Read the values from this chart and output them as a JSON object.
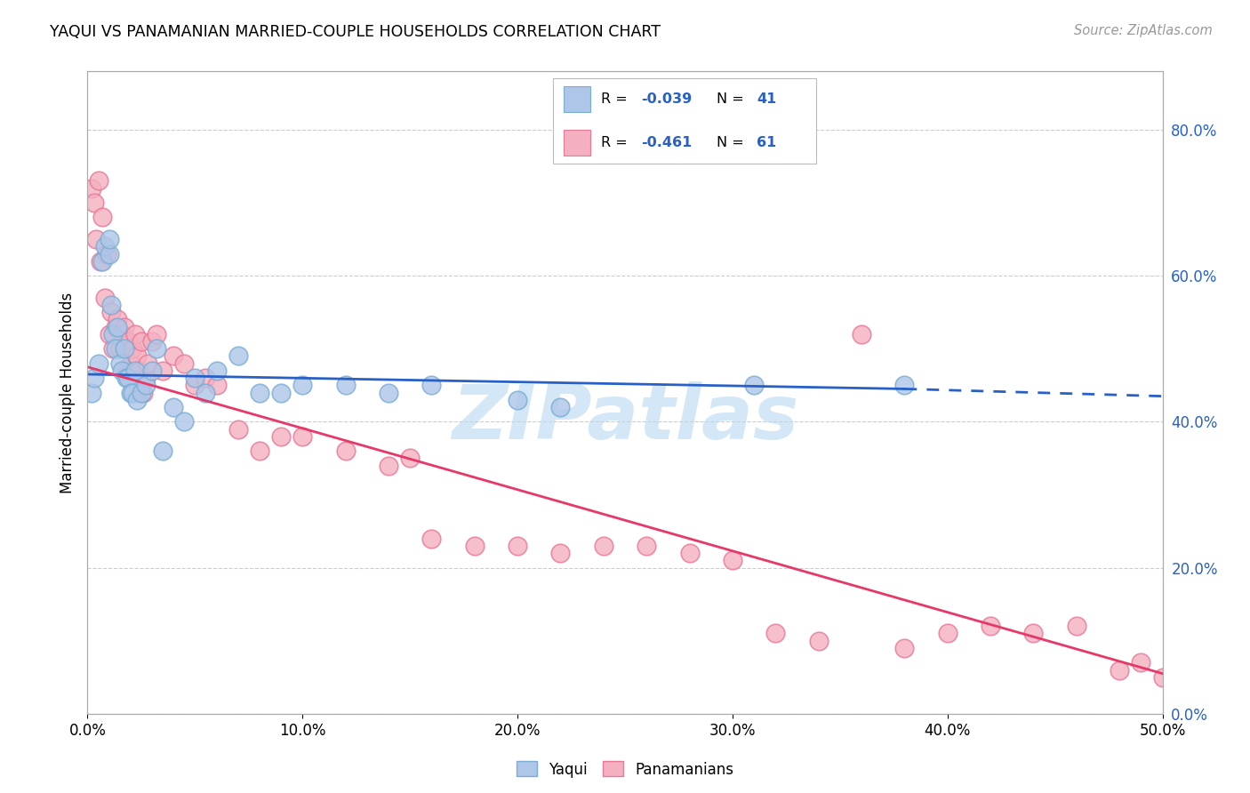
{
  "title": "YAQUI VS PANAMANIAN MARRIED-COUPLE HOUSEHOLDS CORRELATION CHART",
  "source": "Source: ZipAtlas.com",
  "xlabel_vals": [
    0.0,
    10.0,
    20.0,
    30.0,
    40.0,
    50.0
  ],
  "ylabel_vals": [
    0.0,
    20.0,
    40.0,
    60.0,
    80.0
  ],
  "xlim": [
    0.0,
    50.0
  ],
  "ylim": [
    0.0,
    88.0
  ],
  "yaqui_color": "#aec6e8",
  "panamanian_color": "#f4b0c0",
  "yaqui_edge": "#7aadd4",
  "panamanian_edge": "#e87898",
  "regression_blue": "#2860c8",
  "regression_pink": "#e83868",
  "watermark": "ZIPatlas",
  "watermark_color": "#b8d8f0",
  "background_color": "#ffffff",
  "grid_color": "#cccccc",
  "yaqui_x": [
    0.2,
    0.3,
    0.5,
    0.7,
    0.8,
    1.0,
    1.0,
    1.1,
    1.2,
    1.3,
    1.4,
    1.5,
    1.6,
    1.7,
    1.8,
    1.9,
    2.0,
    2.1,
    2.2,
    2.3,
    2.5,
    2.7,
    3.0,
    3.2,
    3.5,
    4.0,
    4.5,
    5.0,
    5.5,
    6.0,
    7.0,
    8.0,
    9.0,
    10.0,
    12.0,
    14.0,
    16.0,
    20.0,
    22.0,
    31.0,
    38.0
  ],
  "yaqui_y": [
    44.0,
    46.0,
    48.0,
    62.0,
    64.0,
    63.0,
    65.0,
    56.0,
    52.0,
    50.0,
    53.0,
    48.0,
    47.0,
    50.0,
    46.0,
    46.0,
    44.0,
    44.0,
    47.0,
    43.0,
    44.0,
    45.0,
    47.0,
    50.0,
    36.0,
    42.0,
    40.0,
    46.0,
    44.0,
    47.0,
    49.0,
    44.0,
    44.0,
    45.0,
    45.0,
    44.0,
    45.0,
    43.0,
    42.0,
    45.0,
    45.0
  ],
  "panamanian_x": [
    0.2,
    0.3,
    0.4,
    0.5,
    0.6,
    0.7,
    0.8,
    0.9,
    1.0,
    1.1,
    1.2,
    1.3,
    1.4,
    1.5,
    1.6,
    1.7,
    1.8,
    1.9,
    2.0,
    2.1,
    2.2,
    2.3,
    2.4,
    2.5,
    2.6,
    2.7,
    2.8,
    3.0,
    3.2,
    3.5,
    4.0,
    4.5,
    5.0,
    5.5,
    6.0,
    7.0,
    8.0,
    9.0,
    10.0,
    12.0,
    14.0,
    15.0,
    16.0,
    18.0,
    20.0,
    22.0,
    24.0,
    26.0,
    28.0,
    30.0,
    32.0,
    34.0,
    36.0,
    38.0,
    40.0,
    42.0,
    44.0,
    46.0,
    48.0,
    49.0,
    50.0
  ],
  "panamanian_y": [
    72.0,
    70.0,
    65.0,
    73.0,
    62.0,
    68.0,
    57.0,
    63.0,
    52.0,
    55.0,
    50.0,
    53.0,
    54.0,
    50.0,
    52.0,
    53.0,
    47.0,
    51.0,
    48.0,
    50.0,
    52.0,
    49.0,
    47.0,
    51.0,
    44.0,
    46.0,
    48.0,
    51.0,
    52.0,
    47.0,
    49.0,
    48.0,
    45.0,
    46.0,
    45.0,
    39.0,
    36.0,
    38.0,
    38.0,
    36.0,
    34.0,
    35.0,
    24.0,
    23.0,
    23.0,
    22.0,
    23.0,
    23.0,
    22.0,
    21.0,
    11.0,
    10.0,
    52.0,
    9.0,
    11.0,
    12.0,
    11.0,
    12.0,
    6.0,
    7.0,
    5.0
  ],
  "blue_line_start_x": 0.0,
  "blue_line_start_y": 46.5,
  "blue_line_end_x": 38.0,
  "blue_line_end_y": 44.5,
  "blue_dash_end_x": 50.0,
  "blue_dash_end_y": 43.5,
  "pink_line_start_x": 0.0,
  "pink_line_start_y": 47.5,
  "pink_line_end_x": 50.0,
  "pink_line_end_y": 5.5
}
